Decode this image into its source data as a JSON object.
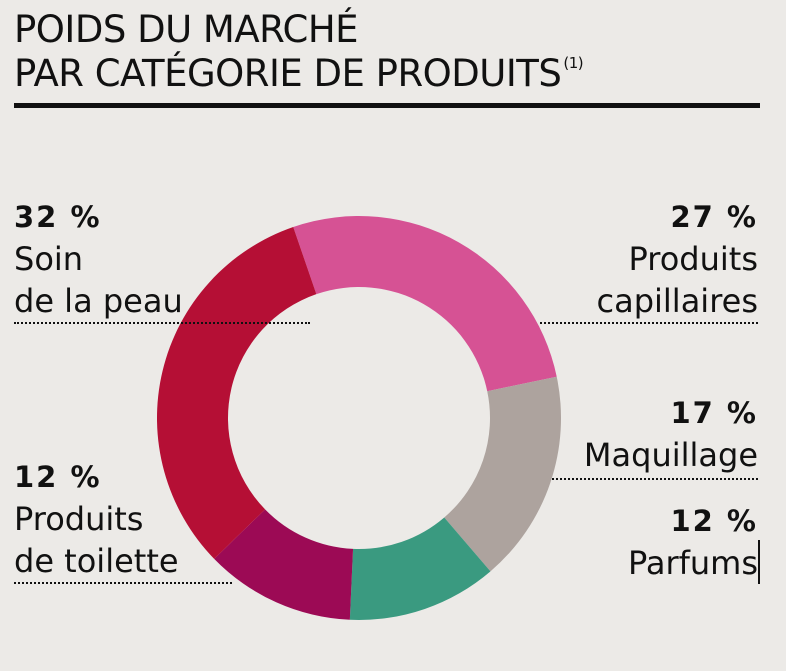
{
  "title": {
    "line1": "POIDS DU MARCHÉ",
    "line2": "PAR CATÉGORIE DE PRODUITS",
    "footnote": "(1)"
  },
  "chart_data": {
    "type": "pie",
    "variant": "donut",
    "title": "POIDS DU MARCHÉ PAR CATÉGORIE DE PRODUITS(1)",
    "categories": [
      "Produits capillaires",
      "Maquillage",
      "Parfums",
      "Produits de toilette",
      "Soin de la peau"
    ],
    "values": [
      27,
      17,
      12,
      12,
      32
    ],
    "unit": "%",
    "colors": [
      "#d65294",
      "#ada39e",
      "#3a9a80",
      "#9c0a55",
      "#b50f35"
    ],
    "labels": [
      {
        "pct": "32 %",
        "line1": "Soin",
        "line2": "de la peau"
      },
      {
        "pct": "27 %",
        "line1": "Produits",
        "line2": "capillaires"
      },
      {
        "pct": "17 %",
        "line1": "Maquillage",
        "line2": ""
      },
      {
        "pct": "12 %",
        "line1": "Produits",
        "line2": "de toilette"
      },
      {
        "pct": "12 %",
        "line1": "Parfums",
        "line2": ""
      }
    ]
  }
}
